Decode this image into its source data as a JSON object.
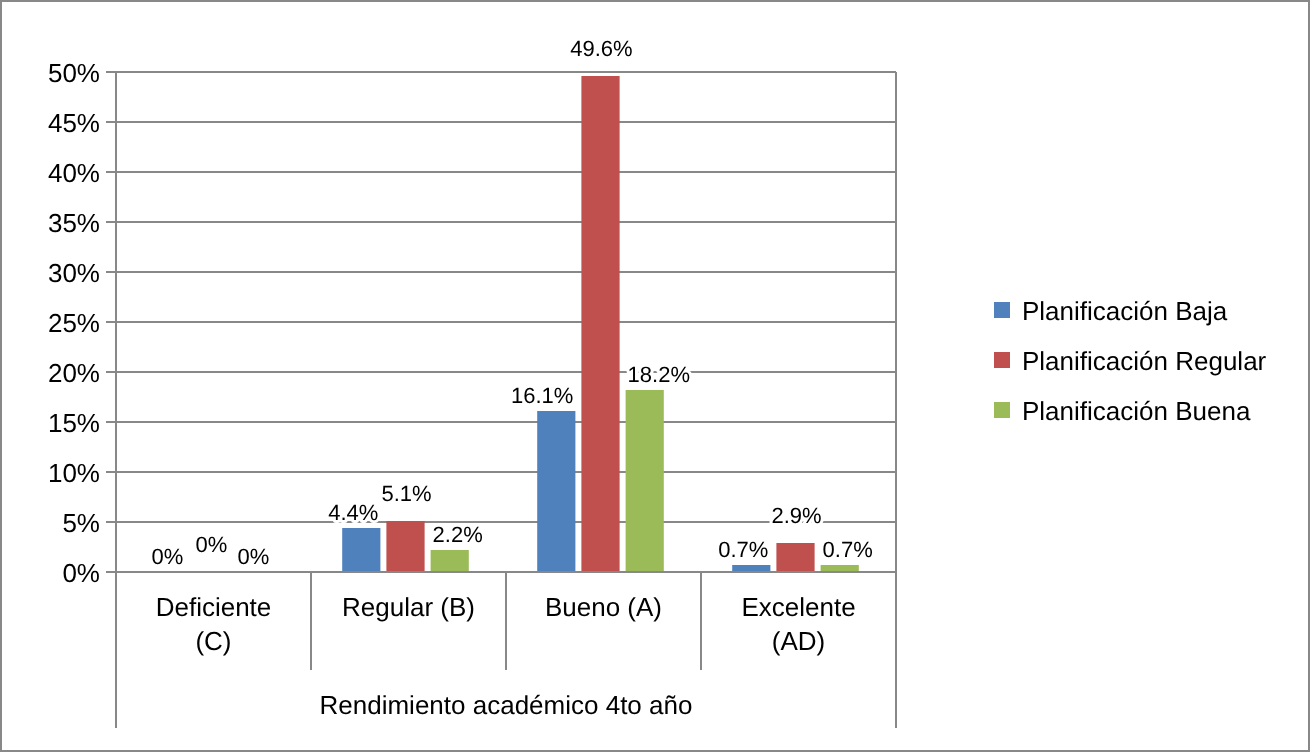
{
  "chart_data": {
    "type": "bar",
    "xlabel": "Rendimiento académico  4to año",
    "categories": [
      "Deficiente (C)",
      "Regular (B)",
      "Bueno (A)",
      "Excelente (AD)"
    ],
    "series": [
      {
        "name": "Planificación Baja",
        "color": "#4f81bd",
        "values": [
          0,
          4.4,
          16.1,
          0.7
        ],
        "value_labels": [
          "0%",
          "4.4%",
          "16.1%",
          "0.7%"
        ]
      },
      {
        "name": "Planificación Regular",
        "color": "#c0504d",
        "values": [
          0,
          5.1,
          49.6,
          2.9
        ],
        "value_labels": [
          "0%",
          "5.1%",
          "49.6%",
          "2.9%"
        ]
      },
      {
        "name": "Planificación Buena",
        "color": "#9bbb59",
        "values": [
          0,
          2.2,
          18.2,
          0.7
        ],
        "value_labels": [
          "0%",
          "2.2%",
          "18.2%",
          "0.7%"
        ]
      }
    ],
    "ylim": [
      0,
      50
    ],
    "yticks": [
      {
        "value": 0,
        "label": "0%"
      },
      {
        "value": 5,
        "label": "5%"
      },
      {
        "value": 10,
        "label": "10%"
      },
      {
        "value": 15,
        "label": "15%"
      },
      {
        "value": 20,
        "label": "20%"
      },
      {
        "value": 25,
        "label": "25%"
      },
      {
        "value": 30,
        "label": "30%"
      },
      {
        "value": 35,
        "label": "35%"
      },
      {
        "value": 40,
        "label": "40%"
      },
      {
        "value": 45,
        "label": "45%"
      },
      {
        "value": 50,
        "label": "50%"
      }
    ],
    "grid": "y",
    "legend": "right"
  }
}
